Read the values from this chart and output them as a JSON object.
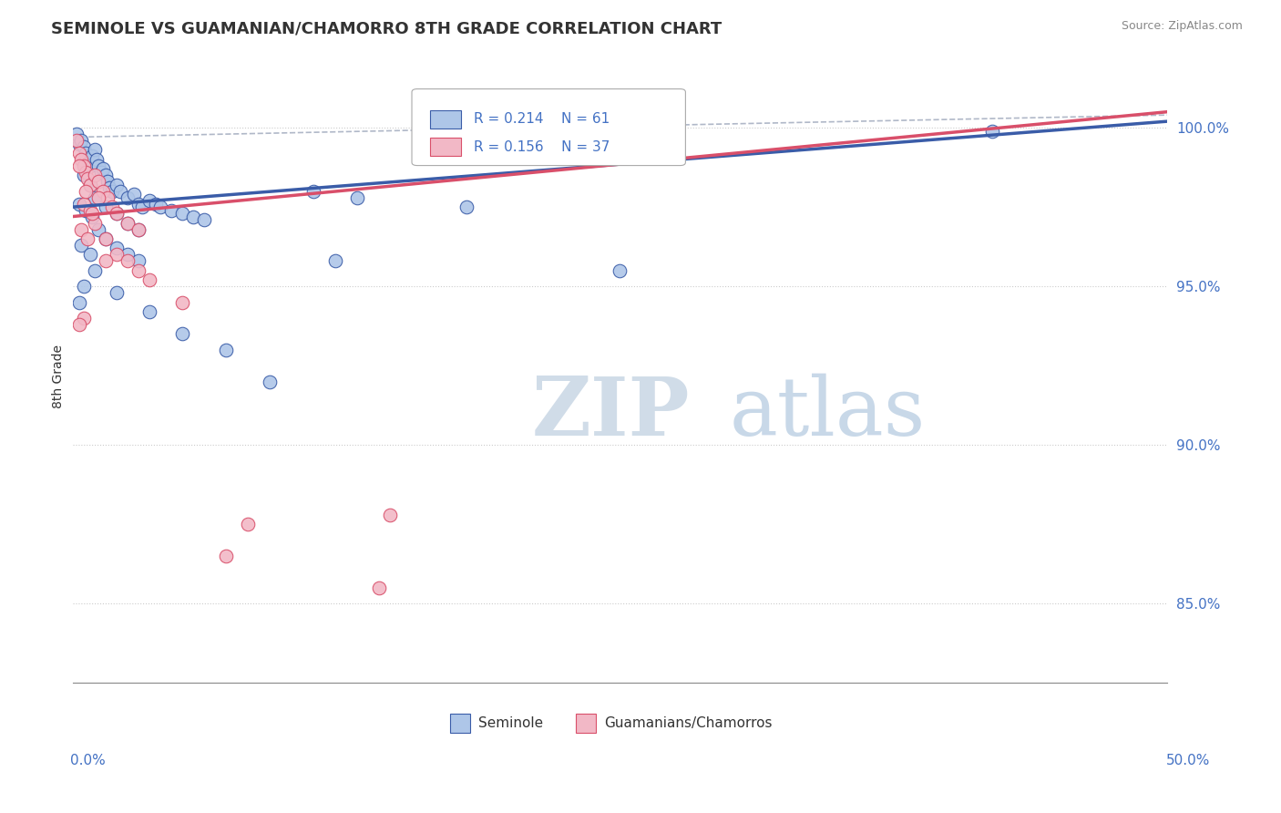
{
  "title": "SEMINOLE VS GUAMANIAN/CHAMORRO 8TH GRADE CORRELATION CHART",
  "source": "Source: ZipAtlas.com",
  "ylabel": "8th Grade",
  "y_ticks": [
    85.0,
    90.0,
    95.0,
    100.0
  ],
  "y_tick_labels": [
    "85.0%",
    "90.0%",
    "95.0%",
    "100.0%"
  ],
  "xmin": 0.0,
  "xmax": 50.0,
  "ymin": 82.5,
  "ymax": 101.8,
  "legend_r1": "R = 0.214",
  "legend_n1": "N = 61",
  "legend_r2": "R = 0.156",
  "legend_n2": "N = 37",
  "legend_label1": "Seminole",
  "legend_label2": "Guamanians/Chamorros",
  "blue_color": "#aec6e8",
  "pink_color": "#f2b8c6",
  "blue_line_color": "#3a5ca8",
  "pink_line_color": "#d94f6a",
  "dashed_line_color": "#b0b8c8",
  "blue_trend": [
    0.0,
    97.5,
    50.0,
    100.2
  ],
  "pink_trend": [
    0.0,
    97.2,
    50.0,
    100.5
  ],
  "dashed_line_y0": 99.7,
  "dashed_line_y1": 100.4,
  "blue_scatter": [
    [
      0.2,
      99.8
    ],
    [
      0.3,
      99.5
    ],
    [
      0.4,
      99.6
    ],
    [
      0.5,
      99.4
    ],
    [
      0.6,
      99.2
    ],
    [
      0.7,
      99.0
    ],
    [
      0.8,
      98.8
    ],
    [
      0.9,
      99.1
    ],
    [
      1.0,
      99.3
    ],
    [
      1.1,
      99.0
    ],
    [
      1.2,
      98.8
    ],
    [
      1.3,
      98.6
    ],
    [
      1.4,
      98.7
    ],
    [
      1.5,
      98.5
    ],
    [
      1.6,
      98.3
    ],
    [
      1.7,
      98.1
    ],
    [
      1.8,
      98.0
    ],
    [
      2.0,
      98.2
    ],
    [
      2.2,
      98.0
    ],
    [
      2.5,
      97.8
    ],
    [
      2.8,
      97.9
    ],
    [
      3.0,
      97.6
    ],
    [
      3.2,
      97.5
    ],
    [
      3.5,
      97.7
    ],
    [
      3.8,
      97.6
    ],
    [
      4.0,
      97.5
    ],
    [
      4.5,
      97.4
    ],
    [
      5.0,
      97.3
    ],
    [
      5.5,
      97.2
    ],
    [
      6.0,
      97.1
    ],
    [
      0.5,
      98.5
    ],
    [
      0.8,
      98.2
    ],
    [
      1.0,
      97.8
    ],
    [
      1.5,
      97.5
    ],
    [
      2.0,
      97.3
    ],
    [
      2.5,
      97.0
    ],
    [
      3.0,
      96.8
    ],
    [
      0.3,
      97.6
    ],
    [
      0.6,
      97.4
    ],
    [
      0.9,
      97.2
    ],
    [
      1.2,
      96.8
    ],
    [
      1.5,
      96.5
    ],
    [
      2.0,
      96.2
    ],
    [
      2.5,
      96.0
    ],
    [
      3.0,
      95.8
    ],
    [
      0.4,
      96.3
    ],
    [
      0.8,
      96.0
    ],
    [
      1.0,
      95.5
    ],
    [
      0.5,
      95.0
    ],
    [
      0.3,
      94.5
    ],
    [
      2.0,
      94.8
    ],
    [
      3.5,
      94.2
    ],
    [
      5.0,
      93.5
    ],
    [
      7.0,
      93.0
    ],
    [
      9.0,
      92.0
    ],
    [
      11.0,
      98.0
    ],
    [
      13.0,
      97.8
    ],
    [
      18.0,
      97.5
    ],
    [
      42.0,
      99.9
    ],
    [
      25.0,
      95.5
    ],
    [
      12.0,
      95.8
    ]
  ],
  "pink_scatter": [
    [
      0.2,
      99.6
    ],
    [
      0.3,
      99.2
    ],
    [
      0.4,
      99.0
    ],
    [
      0.5,
      98.8
    ],
    [
      0.6,
      98.6
    ],
    [
      0.7,
      98.4
    ],
    [
      0.8,
      98.2
    ],
    [
      1.0,
      98.5
    ],
    [
      1.2,
      98.3
    ],
    [
      1.4,
      98.0
    ],
    [
      1.6,
      97.8
    ],
    [
      1.8,
      97.5
    ],
    [
      2.0,
      97.3
    ],
    [
      2.5,
      97.0
    ],
    [
      3.0,
      96.8
    ],
    [
      0.5,
      97.6
    ],
    [
      0.8,
      97.4
    ],
    [
      1.0,
      97.0
    ],
    [
      1.5,
      96.5
    ],
    [
      2.0,
      96.0
    ],
    [
      0.3,
      98.8
    ],
    [
      0.6,
      98.0
    ],
    [
      1.2,
      97.8
    ],
    [
      0.9,
      97.3
    ],
    [
      2.5,
      95.8
    ],
    [
      3.0,
      95.5
    ],
    [
      0.4,
      96.8
    ],
    [
      0.7,
      96.5
    ],
    [
      1.5,
      95.8
    ],
    [
      3.5,
      95.2
    ],
    [
      5.0,
      94.5
    ],
    [
      0.5,
      94.0
    ],
    [
      0.3,
      93.8
    ],
    [
      8.0,
      87.5
    ],
    [
      7.0,
      86.5
    ],
    [
      14.5,
      87.8
    ],
    [
      14.0,
      85.5
    ]
  ]
}
